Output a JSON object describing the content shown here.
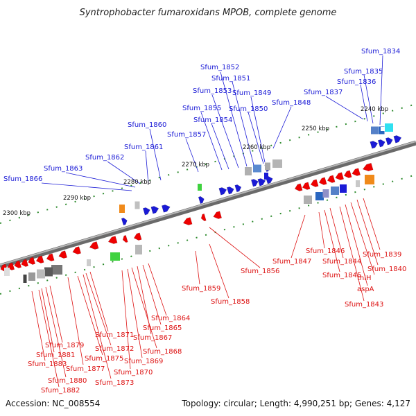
{
  "title": "Syntrophobacter fumaroxidans MPOB, complete genome",
  "footer": {
    "accession": "Accession: NC_008554",
    "topology": "Topology: circular; Length: 4,990,251 bp; Genes: 4,127"
  },
  "kbp_labels": [
    "2240 kbp",
    "2250 kbp",
    "2260 kbp",
    "2270 kbp",
    "2280 kbp",
    "2290 kbp",
    "2300 kbp"
  ],
  "forward_labels": [
    "Sfum_1834",
    "Sfum_1835",
    "Sfum_1836",
    "Sfum_1837",
    "Sfum_1848",
    "Sfum_1849",
    "Sfum_1850",
    "Sfum_1851",
    "Sfum_1852",
    "Sfum_1853",
    "Sfum_1854",
    "Sfum_1855",
    "Sfum_1857",
    "Sfum_1860",
    "Sfum_1861",
    "Sfum_1862",
    "Sfum_1863",
    "Sfum_1866"
  ],
  "reverse_labels": [
    "Sfum_1839",
    "Sfum_1840",
    "thiH",
    "aspA",
    "Sfum_1843",
    "Sfum_1844",
    "Sfum_1845",
    "Sfum_1846",
    "Sfum_1847",
    "Sfum_1856",
    "Sfum_1858",
    "Sfum_1859",
    "Sfum_1864",
    "Sfum_1865",
    "Sfum_1867",
    "Sfum_1868",
    "Sfum_1869",
    "Sfum_1870",
    "Sfum_1871",
    "Sfum_1872",
    "Sfum_1873",
    "Sfum_1875",
    "Sfum_1877",
    "Sfum_1879",
    "Sfum_1880",
    "Sfum_1881",
    "Sfum_1882",
    "Sfum_1883"
  ],
  "colors": {
    "forward": "#1a1ad6",
    "reverse": "#ee0000",
    "backbone": "#7f7f7f",
    "tick": "#2e8b2e"
  }
}
